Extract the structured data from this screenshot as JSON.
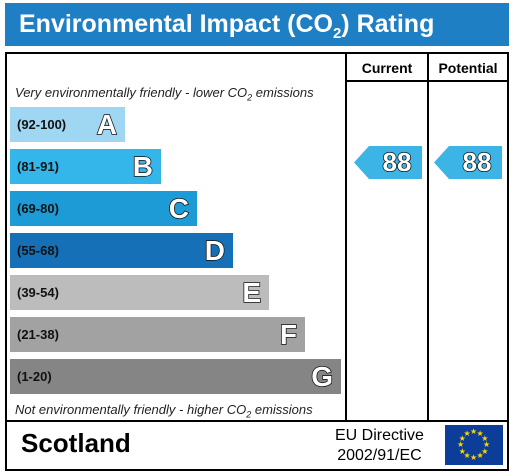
{
  "title": "Environmental Impact (CO",
  "title_sub": "2",
  "title_end": ") Rating",
  "columns": {
    "current": "Current",
    "potential": "Potential"
  },
  "top_note": {
    "before": "Very environmentally friendly - lower CO",
    "sub": "2",
    "after": " emissions"
  },
  "bottom_note": {
    "before": "Not environmentally friendly - higher CO",
    "sub": "2",
    "after": " emissions"
  },
  "bands": [
    {
      "range": "(92-100)",
      "letter": "A",
      "color": "#9fd7f2"
    },
    {
      "range": "(81-91)",
      "letter": "B",
      "color": "#34b6ea"
    },
    {
      "range": "(69-80)",
      "letter": "C",
      "color": "#1d9bd6"
    },
    {
      "range": "(55-68)",
      "letter": "D",
      "color": "#1570b7"
    },
    {
      "range": "(39-54)",
      "letter": "E",
      "color": "#bcbcbc"
    },
    {
      "range": "(21-38)",
      "letter": "F",
      "color": "#a2a2a2"
    },
    {
      "range": "(1-20)",
      "letter": "G",
      "color": "#858585"
    }
  ],
  "current_rating": "88",
  "potential_rating": "88",
  "arrow_color": "#3cb4e5",
  "region": "Scotland",
  "directive": {
    "line1": "EU Directive",
    "line2": "2002/91/EC"
  },
  "flag_icon": "eu-flag-icon"
}
